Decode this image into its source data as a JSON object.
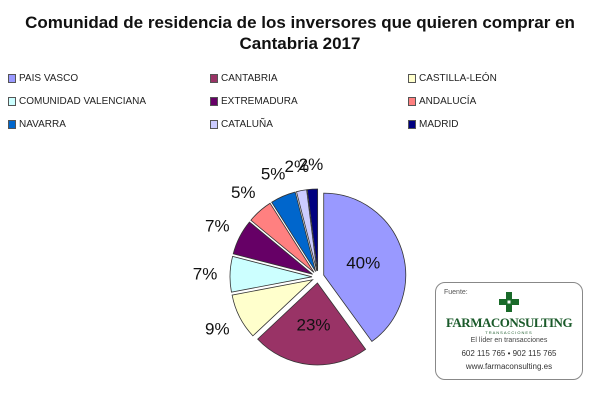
{
  "chart_data": {
    "type": "pie",
    "title_line1": "Comunidad de residencia de los inversores que quieren comprar en",
    "title_line2": "Cantabria 2017",
    "slices": [
      {
        "label": "PAIS VASCO",
        "value": 40,
        "display": "40%",
        "color": "#9999ff"
      },
      {
        "label": "CANTABRIA",
        "value": 23,
        "display": "23%",
        "color": "#993366"
      },
      {
        "label": "CASTILLA-LEÓN",
        "value": 9,
        "display": "9%",
        "color": "#ffffcc"
      },
      {
        "label": "COMUNIDAD VALENCIANA",
        "value": 7,
        "display": "7%",
        "color": "#ccffff"
      },
      {
        "label": "EXTREMADURA",
        "value": 7,
        "display": "7%",
        "color": "#660066"
      },
      {
        "label": "ANDALUCÍA",
        "value": 5,
        "display": "5%",
        "color": "#ff8080"
      },
      {
        "label": "NAVARRA",
        "value": 5,
        "display": "5%",
        "color": "#0066cc"
      },
      {
        "label": "CATALUÑA",
        "value": 2,
        "display": "2%",
        "color": "#ccccff"
      },
      {
        "label": "MADRID",
        "value": 2,
        "display": "2%",
        "color": "#000080"
      }
    ],
    "legend_position": "top",
    "exploded": true
  },
  "source": {
    "label": "Fuente:",
    "logo_name": "FARMACONSULTING",
    "logo_sub": "TRANSACCIONES",
    "tagline": "El líder en transacciones",
    "phones": "602 115 765 •   902 115 765",
    "website": "www.farmaconsulting.es"
  }
}
